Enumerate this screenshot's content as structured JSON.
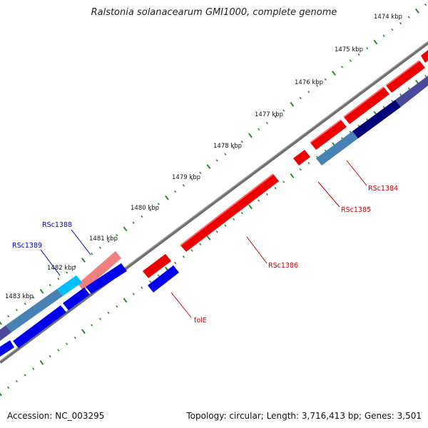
{
  "header": {
    "title": "Ralstonia solanacearum GMI1000, complete genome"
  },
  "footer": {
    "accession": "Accession: NC_003295",
    "stats": "Topology: circular; Length: 3,716,413 bp; Genes: 3,501"
  },
  "ticks": [
    {
      "label": "1474 kbp"
    },
    {
      "label": "1475 kbp"
    },
    {
      "label": "1476 kbp"
    },
    {
      "label": "1477 kbp"
    },
    {
      "label": "1478 kbp"
    },
    {
      "label": "1479 kbp"
    },
    {
      "label": "1480 kbp"
    },
    {
      "label": "1481 kbp"
    },
    {
      "label": "1482 kbp"
    },
    {
      "label": "1483 kbp"
    }
  ],
  "gene_labels": [
    {
      "name": "RSc1384",
      "color": "#cc0000"
    },
    {
      "name": "RSc1385",
      "color": "#cc0000"
    },
    {
      "name": "RSc1386",
      "color": "#cc0000"
    },
    {
      "name": "folE",
      "color": "#cc0000"
    },
    {
      "name": "RSc1388",
      "color": "#0000cc"
    },
    {
      "name": "RSc1389",
      "color": "#0000cc"
    }
  ],
  "colors": {
    "forward_cds": "#ee0000",
    "reverse_cds": "#0000ee",
    "backbone": "#777777",
    "tick": "#2a8a2a"
  }
}
